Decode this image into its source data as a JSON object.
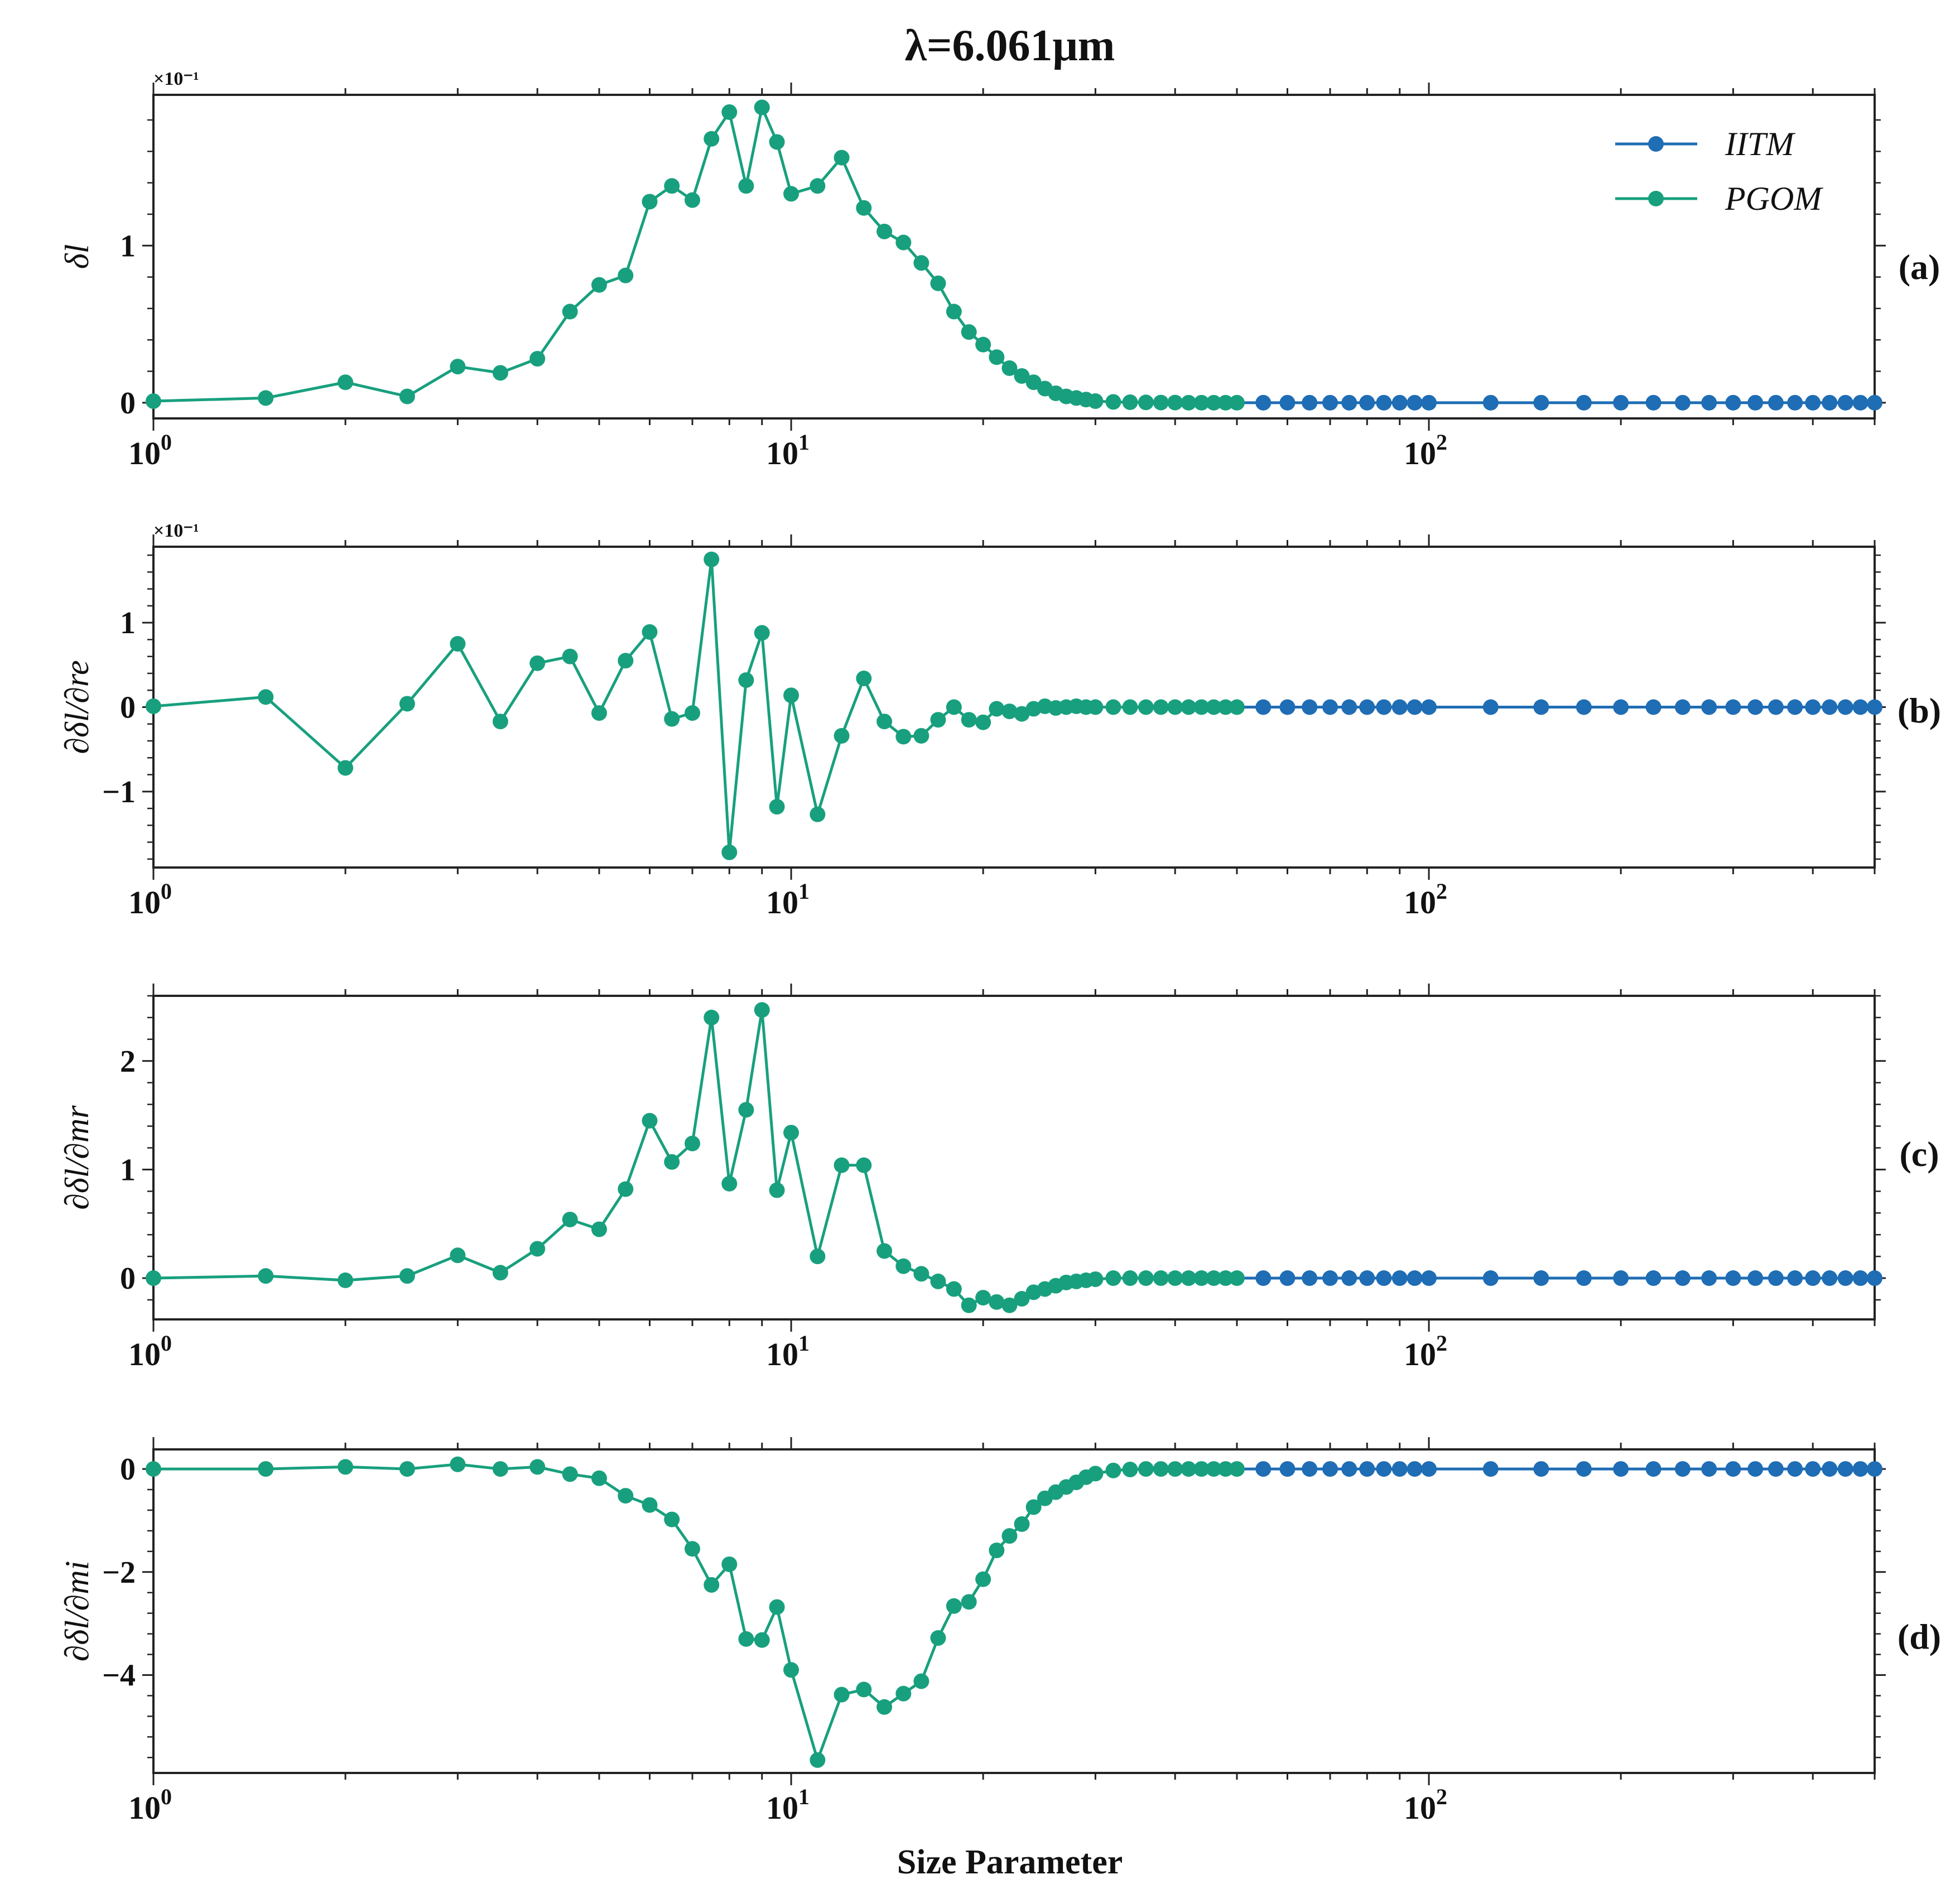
{
  "title": "λ=6.061μm",
  "colors": {
    "IITM": "#1f6db4",
    "PGOM": "#18a07e"
  },
  "chart_data": [
    {
      "id": "a",
      "type": "line",
      "panel_label": "(a)",
      "title": "λ=6.061μm",
      "ylabel": "δl",
      "xlabel": "",
      "x_scale": "log",
      "xlim": [
        1,
        500
      ],
      "ylim": [
        -0.1,
        1.96
      ],
      "y_ticks": [
        0,
        1
      ],
      "offset_text": "×10⁻¹",
      "legend": {
        "position": "top-right",
        "entries": [
          "IITM",
          "PGOM"
        ]
      },
      "series": [
        {
          "name": "PGOM",
          "x": [
            1,
            1.5,
            2,
            2.5,
            3,
            3.5,
            4,
            4.5,
            5,
            5.5,
            6,
            6.5,
            7,
            7.5,
            8,
            8.5,
            9,
            9.5,
            10,
            11,
            12,
            13,
            14,
            15,
            16,
            17,
            18,
            19,
            20,
            21,
            22,
            23,
            24,
            25,
            26,
            27,
            28,
            29,
            30,
            32,
            34,
            36,
            38,
            40,
            42,
            44,
            46,
            48,
            50
          ],
          "values": [
            0.01,
            0.03,
            0.13,
            0.04,
            0.23,
            0.19,
            0.28,
            0.58,
            0.75,
            0.81,
            1.28,
            1.38,
            1.29,
            1.68,
            1.85,
            1.38,
            1.88,
            1.66,
            1.33,
            1.38,
            1.56,
            1.24,
            1.09,
            1.02,
            0.89,
            0.76,
            0.58,
            0.45,
            0.37,
            0.29,
            0.22,
            0.17,
            0.13,
            0.09,
            0.06,
            0.04,
            0.03,
            0.02,
            0.01,
            0.005,
            0.003,
            0.002,
            0.001,
            0.001,
            0.0,
            0.0,
            0.0,
            0.0,
            0.0
          ]
        },
        {
          "name": "IITM",
          "x": [
            55,
            60,
            65,
            70,
            75,
            80,
            85,
            90,
            95,
            100,
            125,
            150,
            175,
            200,
            225,
            250,
            275,
            300,
            325,
            350,
            375,
            400,
            425,
            450,
            475,
            500
          ],
          "values": [
            0,
            0,
            0,
            0,
            0,
            0,
            0,
            0,
            0,
            0,
            0,
            0,
            0,
            0,
            0,
            0,
            0,
            0,
            0,
            0,
            0,
            0,
            0,
            0,
            0,
            0
          ]
        }
      ]
    },
    {
      "id": "b",
      "type": "line",
      "panel_label": "(b)",
      "ylabel": "∂δl/∂re",
      "xlabel": "",
      "x_scale": "log",
      "xlim": [
        1,
        500
      ],
      "ylim": [
        -1.9,
        1.9
      ],
      "y_ticks": [
        -1,
        0,
        1
      ],
      "offset_text": "×10⁻¹",
      "series": [
        {
          "name": "PGOM",
          "x": [
            1,
            1.5,
            2,
            2.5,
            3,
            3.5,
            4,
            4.5,
            5,
            5.5,
            6,
            6.5,
            7,
            7.5,
            8,
            8.5,
            9,
            9.5,
            10,
            11,
            12,
            13,
            14,
            15,
            16,
            17,
            18,
            19,
            20,
            21,
            22,
            23,
            24,
            25,
            26,
            27,
            28,
            29,
            30,
            32,
            34,
            36,
            38,
            40,
            42,
            44,
            46,
            48,
            50
          ],
          "values": [
            0.01,
            0.12,
            -0.72,
            0.04,
            0.75,
            -0.17,
            0.52,
            0.6,
            -0.07,
            0.55,
            0.89,
            -0.14,
            -0.07,
            1.75,
            -1.72,
            0.32,
            0.88,
            -1.18,
            0.14,
            -1.27,
            -0.34,
            0.34,
            -0.17,
            -0.35,
            -0.34,
            -0.15,
            0.0,
            -0.15,
            -0.18,
            -0.02,
            -0.05,
            -0.08,
            -0.02,
            0.01,
            -0.01,
            0.0,
            0.01,
            0.0,
            0.0,
            0.0,
            0.0,
            0.0,
            0.0,
            0.0,
            0.0,
            0.0,
            0.0,
            0.0,
            0.0
          ]
        },
        {
          "name": "IITM",
          "x": [
            55,
            60,
            65,
            70,
            75,
            80,
            85,
            90,
            95,
            100,
            125,
            150,
            175,
            200,
            225,
            250,
            275,
            300,
            325,
            350,
            375,
            400,
            425,
            450,
            475,
            500
          ],
          "values": [
            0,
            0,
            0,
            0,
            0,
            0,
            0,
            0,
            0,
            0,
            0,
            0,
            0,
            0,
            0,
            0,
            0,
            0,
            0,
            0,
            0,
            0,
            0,
            0,
            0,
            0
          ]
        }
      ]
    },
    {
      "id": "c",
      "type": "line",
      "panel_label": "(c)",
      "ylabel": "∂δl/∂mr",
      "xlabel": "",
      "x_scale": "log",
      "xlim": [
        1,
        500
      ],
      "ylim": [
        -0.38,
        2.6
      ],
      "y_ticks": [
        0,
        1,
        2
      ],
      "offset_text": "",
      "series": [
        {
          "name": "PGOM",
          "x": [
            1,
            1.5,
            2,
            2.5,
            3,
            3.5,
            4,
            4.5,
            5,
            5.5,
            6,
            6.5,
            7,
            7.5,
            8,
            8.5,
            9,
            9.5,
            10,
            11,
            12,
            13,
            14,
            15,
            16,
            17,
            18,
            19,
            20,
            21,
            22,
            23,
            24,
            25,
            26,
            27,
            28,
            29,
            30,
            32,
            34,
            36,
            38,
            40,
            42,
            44,
            46,
            48,
            50
          ],
          "values": [
            0.0,
            0.02,
            -0.02,
            0.02,
            0.21,
            0.05,
            0.27,
            0.54,
            0.45,
            0.82,
            1.45,
            1.07,
            1.24,
            2.4,
            0.87,
            1.55,
            2.47,
            0.81,
            1.34,
            0.2,
            1.04,
            1.04,
            0.25,
            0.11,
            0.04,
            -0.03,
            -0.1,
            -0.25,
            -0.18,
            -0.22,
            -0.25,
            -0.19,
            -0.13,
            -0.1,
            -0.07,
            -0.04,
            -0.03,
            -0.02,
            -0.01,
            0.0,
            0.0,
            0.0,
            0.0,
            0.0,
            0.0,
            0.0,
            0.0,
            0.0,
            0.0
          ]
        },
        {
          "name": "IITM",
          "x": [
            55,
            60,
            65,
            70,
            75,
            80,
            85,
            90,
            95,
            100,
            125,
            150,
            175,
            200,
            225,
            250,
            275,
            300,
            325,
            350,
            375,
            400,
            425,
            450,
            475,
            500
          ],
          "values": [
            0,
            0,
            0,
            0,
            0,
            0,
            0,
            0,
            0,
            0,
            0,
            0,
            0,
            0,
            0,
            0,
            0,
            0,
            0,
            0,
            0,
            0,
            0,
            0,
            0,
            0
          ]
        }
      ]
    },
    {
      "id": "d",
      "type": "line",
      "panel_label": "(d)",
      "ylabel": "∂δl/∂mi",
      "xlabel": "Size Parameter",
      "x_scale": "log",
      "xlim": [
        1,
        500
      ],
      "ylim": [
        -5.9,
        0.38
      ],
      "y_ticks": [
        -4,
        -2,
        0
      ],
      "offset_text": "",
      "series": [
        {
          "name": "PGOM",
          "x": [
            1,
            1.5,
            2,
            2.5,
            3,
            3.5,
            4,
            4.5,
            5,
            5.5,
            6,
            6.5,
            7,
            7.5,
            8,
            8.5,
            9,
            9.5,
            10,
            11,
            12,
            13,
            14,
            15,
            16,
            17,
            18,
            19,
            20,
            21,
            22,
            23,
            24,
            25,
            26,
            27,
            28,
            29,
            30,
            32,
            34,
            36,
            38,
            40,
            42,
            44,
            46,
            48,
            50
          ],
          "values": [
            0.0,
            0.0,
            0.04,
            0.0,
            0.09,
            0.0,
            0.04,
            -0.1,
            -0.18,
            -0.52,
            -0.7,
            -0.98,
            -1.55,
            -2.25,
            -1.85,
            -3.3,
            -3.32,
            -2.68,
            -3.9,
            -5.65,
            -4.38,
            -4.28,
            -4.62,
            -4.36,
            -4.12,
            -3.28,
            -2.66,
            -2.58,
            -2.14,
            -1.58,
            -1.3,
            -1.07,
            -0.74,
            -0.57,
            -0.45,
            -0.35,
            -0.26,
            -0.16,
            -0.09,
            -0.03,
            -0.01,
            0.0,
            0.0,
            0.0,
            0.0,
            0.0,
            0.0,
            0.0,
            0.0
          ]
        },
        {
          "name": "IITM",
          "x": [
            55,
            60,
            65,
            70,
            75,
            80,
            85,
            90,
            95,
            100,
            125,
            150,
            175,
            200,
            225,
            250,
            275,
            300,
            325,
            350,
            375,
            400,
            425,
            450,
            475,
            500
          ],
          "values": [
            0,
            0,
            0,
            0,
            0,
            0,
            0,
            0,
            0,
            0,
            0,
            0,
            0,
            0,
            0,
            0,
            0,
            0,
            0,
            0,
            0,
            0,
            0,
            0,
            0,
            0
          ]
        }
      ]
    }
  ]
}
